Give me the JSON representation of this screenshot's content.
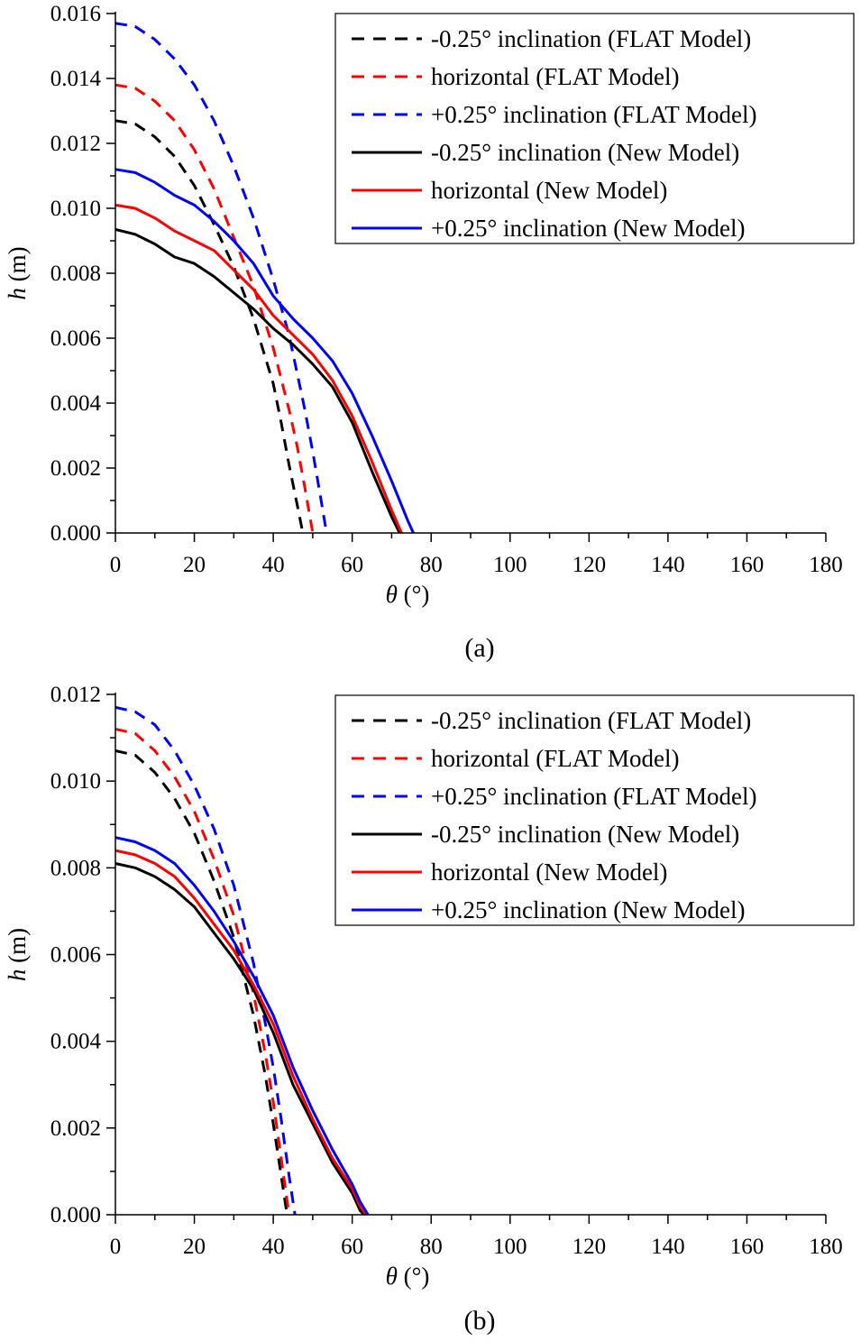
{
  "chart_data": [
    {
      "type": "line",
      "caption": "(a)",
      "xlabel_symbol": "θ",
      "xlabel_unit": " (°)",
      "ylabel_symbol": "h",
      "ylabel_unit": " (m)",
      "xlim": [
        0,
        180
      ],
      "ylim": [
        0,
        0.016
      ],
      "xticks": [
        "0",
        "20",
        "40",
        "60",
        "80",
        "100",
        "120",
        "140",
        "160",
        "180"
      ],
      "yticks": [
        "0.000",
        "0.002",
        "0.004",
        "0.006",
        "0.008",
        "0.010",
        "0.012",
        "0.014",
        "0.016"
      ],
      "legend_position": "top-right",
      "series": [
        {
          "name": "-0.25° inclination (FLAT Model)",
          "color": "#000000",
          "style": "dashed",
          "x": [
            0,
            5,
            10,
            15,
            20,
            25,
            30,
            35,
            40,
            42,
            44,
            46,
            47.5
          ],
          "y": [
            0.0127,
            0.0126,
            0.0122,
            0.0116,
            0.0107,
            0.0095,
            0.0082,
            0.0066,
            0.0046,
            0.0034,
            0.0021,
            0.0009,
            0.0
          ]
        },
        {
          "name": "horizontal (FLAT Model)",
          "color": "#ff0000",
          "style": "dashed",
          "x": [
            0,
            5,
            10,
            15,
            20,
            25,
            30,
            35,
            40,
            44,
            46,
            48,
            50
          ],
          "y": [
            0.0138,
            0.0137,
            0.0133,
            0.0127,
            0.0118,
            0.0106,
            0.0091,
            0.0076,
            0.0057,
            0.0038,
            0.0027,
            0.0014,
            0.0
          ]
        },
        {
          "name": "+0.25° inclination (FLAT Model)",
          "color": "#0000ff",
          "style": "dashed",
          "x": [
            0,
            5,
            10,
            15,
            20,
            25,
            30,
            35,
            40,
            44,
            48,
            50,
            52,
            53.5
          ],
          "y": [
            0.0157,
            0.0156,
            0.0152,
            0.0146,
            0.0138,
            0.0127,
            0.0113,
            0.0097,
            0.0078,
            0.0061,
            0.0038,
            0.0025,
            0.0011,
            0.0
          ]
        },
        {
          "name": "-0.25° inclination (New Model)",
          "color": "#000000",
          "style": "solid",
          "x": [
            0,
            5,
            10,
            15,
            20,
            25,
            30,
            35,
            40,
            45,
            50,
            55,
            60,
            65,
            70,
            72
          ],
          "y": [
            0.00935,
            0.0092,
            0.0089,
            0.0085,
            0.0083,
            0.0079,
            0.0074,
            0.0069,
            0.0063,
            0.0058,
            0.0052,
            0.0045,
            0.0034,
            0.0019,
            0.0005,
            0.0
          ]
        },
        {
          "name": "horizontal (New Model)",
          "color": "#ff0000",
          "style": "solid",
          "x": [
            0,
            5,
            10,
            15,
            20,
            25,
            30,
            35,
            40,
            45,
            50,
            55,
            60,
            65,
            70,
            72.5
          ],
          "y": [
            0.0101,
            0.01,
            0.0097,
            0.0093,
            0.009,
            0.0087,
            0.0081,
            0.0075,
            0.0067,
            0.0061,
            0.0055,
            0.0047,
            0.0036,
            0.0022,
            0.0007,
            0.0
          ]
        },
        {
          "name": "+0.25° inclination (New Model)",
          "color": "#0000ff",
          "style": "solid",
          "x": [
            0,
            5,
            10,
            15,
            20,
            25,
            30,
            35,
            40,
            45,
            50,
            55,
            60,
            65,
            70,
            74,
            75.5
          ],
          "y": [
            0.0112,
            0.0111,
            0.0108,
            0.0104,
            0.0101,
            0.0096,
            0.009,
            0.0083,
            0.0073,
            0.0066,
            0.006,
            0.0053,
            0.0043,
            0.003,
            0.0016,
            0.0004,
            0.0
          ]
        }
      ]
    },
    {
      "type": "line",
      "caption": "(b)",
      "xlabel_symbol": "θ",
      "xlabel_unit": " (°)",
      "ylabel_symbol": "h",
      "ylabel_unit": " (m)",
      "xlim": [
        0,
        180
      ],
      "ylim": [
        0,
        0.012
      ],
      "xticks": [
        "0",
        "20",
        "40",
        "60",
        "80",
        "100",
        "120",
        "140",
        "160",
        "180"
      ],
      "yticks": [
        "0.000",
        "0.002",
        "0.004",
        "0.006",
        "0.008",
        "0.010",
        "0.012"
      ],
      "legend_position": "top-right",
      "series": [
        {
          "name": "-0.25° inclination (FLAT Model)",
          "color": "#000000",
          "style": "dashed",
          "x": [
            0,
            5,
            10,
            15,
            20,
            25,
            30,
            35,
            38,
            40,
            42,
            43.5
          ],
          "y": [
            0.0107,
            0.0106,
            0.0102,
            0.0096,
            0.0088,
            0.0077,
            0.0064,
            0.0046,
            0.0032,
            0.0021,
            0.0009,
            0.0
          ]
        },
        {
          "name": "horizontal (FLAT Model)",
          "color": "#ff0000",
          "style": "dashed",
          "x": [
            0,
            5,
            10,
            15,
            20,
            25,
            30,
            35,
            38,
            40,
            42,
            44
          ],
          "y": [
            0.0112,
            0.0111,
            0.0107,
            0.0101,
            0.0093,
            0.0082,
            0.0069,
            0.0051,
            0.0037,
            0.0026,
            0.0013,
            0.0
          ]
        },
        {
          "name": "+0.25° inclination (FLAT Model)",
          "color": "#0000ff",
          "style": "dashed",
          "x": [
            0,
            5,
            10,
            15,
            20,
            25,
            30,
            35,
            38,
            40,
            42,
            44,
            45.5
          ],
          "y": [
            0.0117,
            0.0116,
            0.0113,
            0.0107,
            0.0099,
            0.0089,
            0.0076,
            0.0058,
            0.0044,
            0.0034,
            0.0022,
            0.0009,
            0.0
          ]
        },
        {
          "name": "-0.25° inclination (New Model)",
          "color": "#000000",
          "style": "solid",
          "x": [
            0,
            5,
            10,
            15,
            20,
            25,
            30,
            35,
            40,
            45,
            50,
            55,
            60,
            62,
            63
          ],
          "y": [
            0.0081,
            0.008,
            0.0078,
            0.0075,
            0.0071,
            0.0065,
            0.0059,
            0.0052,
            0.0042,
            0.003,
            0.0021,
            0.0012,
            0.0005,
            0.0001,
            0.0
          ]
        },
        {
          "name": "horizontal (New Model)",
          "color": "#ff0000",
          "style": "solid",
          "x": [
            0,
            5,
            10,
            15,
            20,
            25,
            30,
            35,
            40,
            45,
            50,
            55,
            60,
            62,
            63.5
          ],
          "y": [
            0.0084,
            0.0083,
            0.0081,
            0.0078,
            0.0073,
            0.0067,
            0.0061,
            0.0053,
            0.0044,
            0.0032,
            0.0022,
            0.0013,
            0.0006,
            0.0002,
            0.0
          ]
        },
        {
          "name": "+0.25° inclination (New Model)",
          "color": "#0000ff",
          "style": "solid",
          "x": [
            0,
            5,
            10,
            15,
            20,
            25,
            30,
            35,
            40,
            45,
            50,
            55,
            60,
            62,
            64
          ],
          "y": [
            0.0087,
            0.0086,
            0.0084,
            0.0081,
            0.0076,
            0.007,
            0.0063,
            0.0055,
            0.0046,
            0.0034,
            0.0024,
            0.0015,
            0.0007,
            0.0003,
            0.0
          ]
        }
      ]
    }
  ]
}
